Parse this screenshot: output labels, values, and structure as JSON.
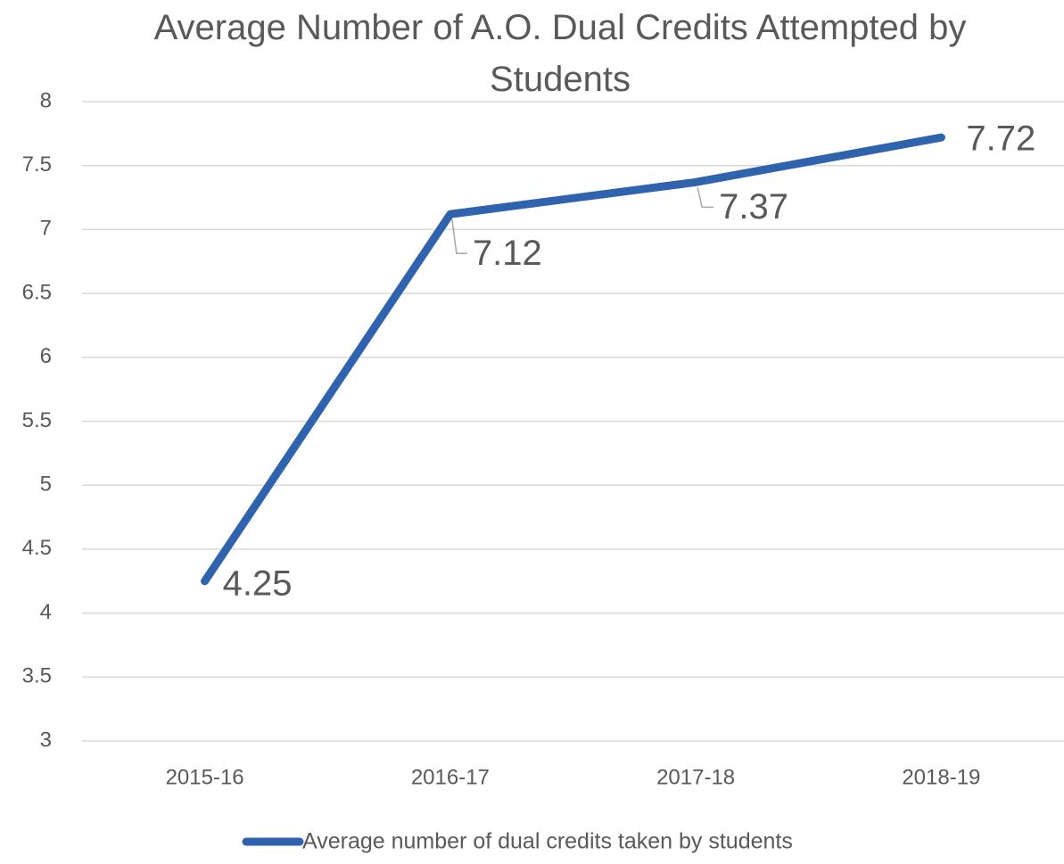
{
  "chart_data": {
    "type": "line",
    "title": "Average Number of A.O. Dual Credits Attempted by Students",
    "categories": [
      "2015-16",
      "2016-17",
      "2017-18",
      "2018-19"
    ],
    "series": [
      {
        "name": "Average number of dual credits taken by students",
        "color": "#3063ae",
        "values": [
          4.25,
          7.12,
          7.37,
          7.72
        ]
      }
    ],
    "ylim": [
      3,
      8
    ],
    "yticks": [
      3,
      3.5,
      4,
      4.5,
      5,
      5.5,
      6,
      6.5,
      7,
      7.5,
      8
    ],
    "grid": true,
    "legend": "bottom",
    "data_labels": true
  }
}
